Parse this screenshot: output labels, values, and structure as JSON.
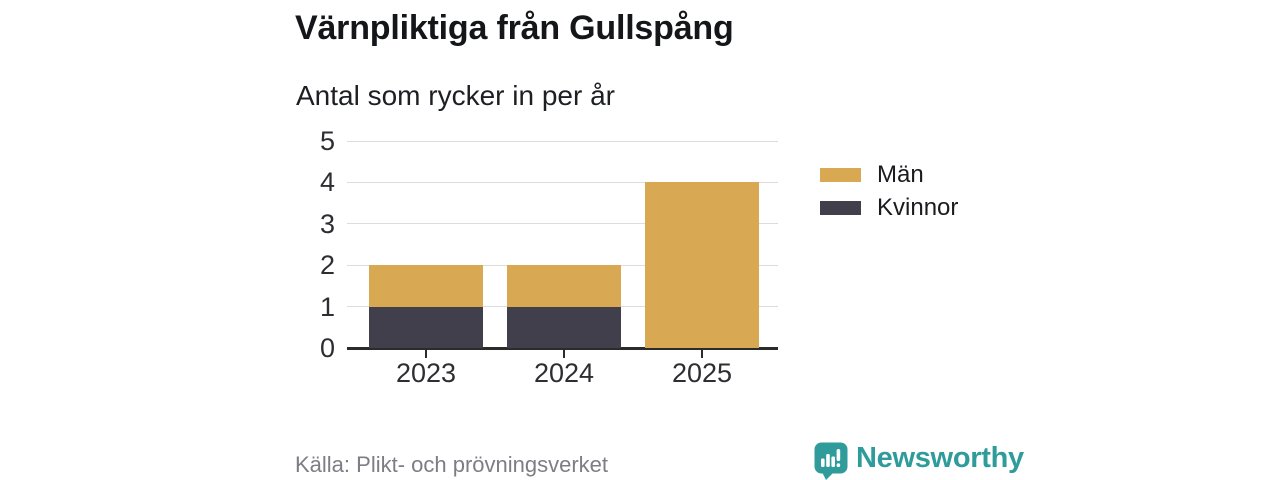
{
  "header": {
    "title": "Värnpliktiga från Gullspång",
    "subtitle": "Antal som rycker in per år"
  },
  "legend": {
    "items": [
      {
        "label": "Män",
        "color": "#d9a853"
      },
      {
        "label": "Kvinnor",
        "color": "#413f4b"
      }
    ]
  },
  "footer": {
    "source": "Källa: Plikt- och prövningsverket",
    "brand": "Newsworthy"
  },
  "icons": {
    "brand_logo": "newsworthy-chart-bubble-icon"
  },
  "colors": {
    "men": "#d9a853",
    "women": "#413f4b",
    "brand_teal": "#2f9b9b",
    "grid": "#dcdcdc",
    "axis": "#2b2b2b",
    "source_text": "#7e7d85"
  },
  "chart_data": {
    "type": "bar",
    "stacked": true,
    "title": "Värnpliktiga från Gullspång",
    "subtitle": "Antal som rycker in per år",
    "categories": [
      "2023",
      "2024",
      "2025"
    ],
    "series": [
      {
        "name": "Kvinnor",
        "values": [
          1,
          1,
          0
        ],
        "color": "#413f4b"
      },
      {
        "name": "Män",
        "values": [
          1,
          1,
          4
        ],
        "color": "#d9a853"
      }
    ],
    "totals": [
      2,
      2,
      4
    ],
    "xlabel": "",
    "ylabel": "Antal som rycker in per år",
    "ylim": [
      0,
      5
    ],
    "yticks": [
      0,
      1,
      2,
      3,
      4,
      5
    ],
    "grid": true,
    "legend_position": "right",
    "legend_order": [
      "Män",
      "Kvinnor"
    ]
  }
}
